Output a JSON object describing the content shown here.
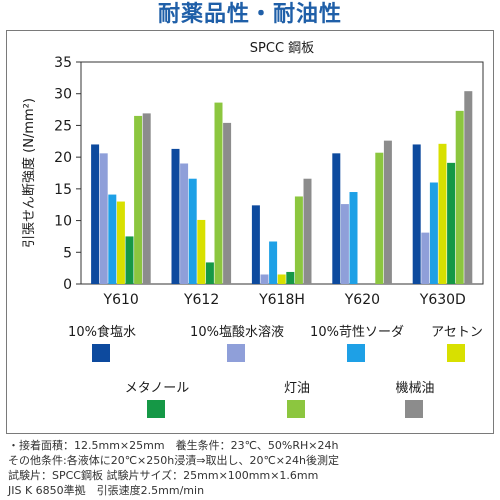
{
  "title": "耐薬品性・耐油性",
  "chart_data": {
    "type": "bar",
    "title": "SPCC 鋼板",
    "ylabel": "引張せん断強度 (N/mm²)",
    "xlabel": "",
    "ylim": [
      0,
      35
    ],
    "yticks": [
      0,
      5,
      10,
      15,
      20,
      25,
      30,
      35
    ],
    "grid": false,
    "legend_position": "bottom",
    "categories": [
      "Y610",
      "Y612",
      "Y618H",
      "Y620",
      "Y630D"
    ],
    "series": [
      {
        "name": "10%食塩水",
        "color": "#0d4a9e",
        "values": [
          22.0,
          21.3,
          12.4,
          20.6,
          22.0
        ]
      },
      {
        "name": "10%塩酸水溶液",
        "color": "#8f9fd9",
        "values": [
          20.6,
          19.0,
          1.5,
          12.6,
          8.1
        ]
      },
      {
        "name": "10%苛性ソーダ",
        "color": "#1ea0e6",
        "values": [
          14.1,
          16.6,
          6.7,
          14.5,
          16.0
        ]
      },
      {
        "name": "アセトン",
        "color": "#d8e000",
        "values": [
          13.0,
          10.1,
          1.5,
          0,
          22.1
        ]
      },
      {
        "name": "メタノール",
        "color": "#159846",
        "values": [
          7.5,
          3.4,
          1.9,
          0,
          19.1
        ]
      },
      {
        "name": "灯油",
        "color": "#8cc63f",
        "values": [
          26.5,
          28.6,
          13.8,
          20.7,
          27.3
        ]
      },
      {
        "name": "機械油",
        "color": "#8c8c8c",
        "values": [
          26.9,
          25.4,
          16.6,
          22.6,
          30.4
        ]
      }
    ]
  },
  "footnotes": [
    "・接着面積：12.5mm×25mm　養生条件：23℃、50%RH×24h",
    "その他条件:各液体に20℃×250h浸漬⇒取出し、20℃×24h後測定",
    "試験片：SPCC鋼板 試験片サイズ：25mm×100mm×1.6mm",
    "JIS K 6850準拠　引張速度2.5mm/min"
  ]
}
